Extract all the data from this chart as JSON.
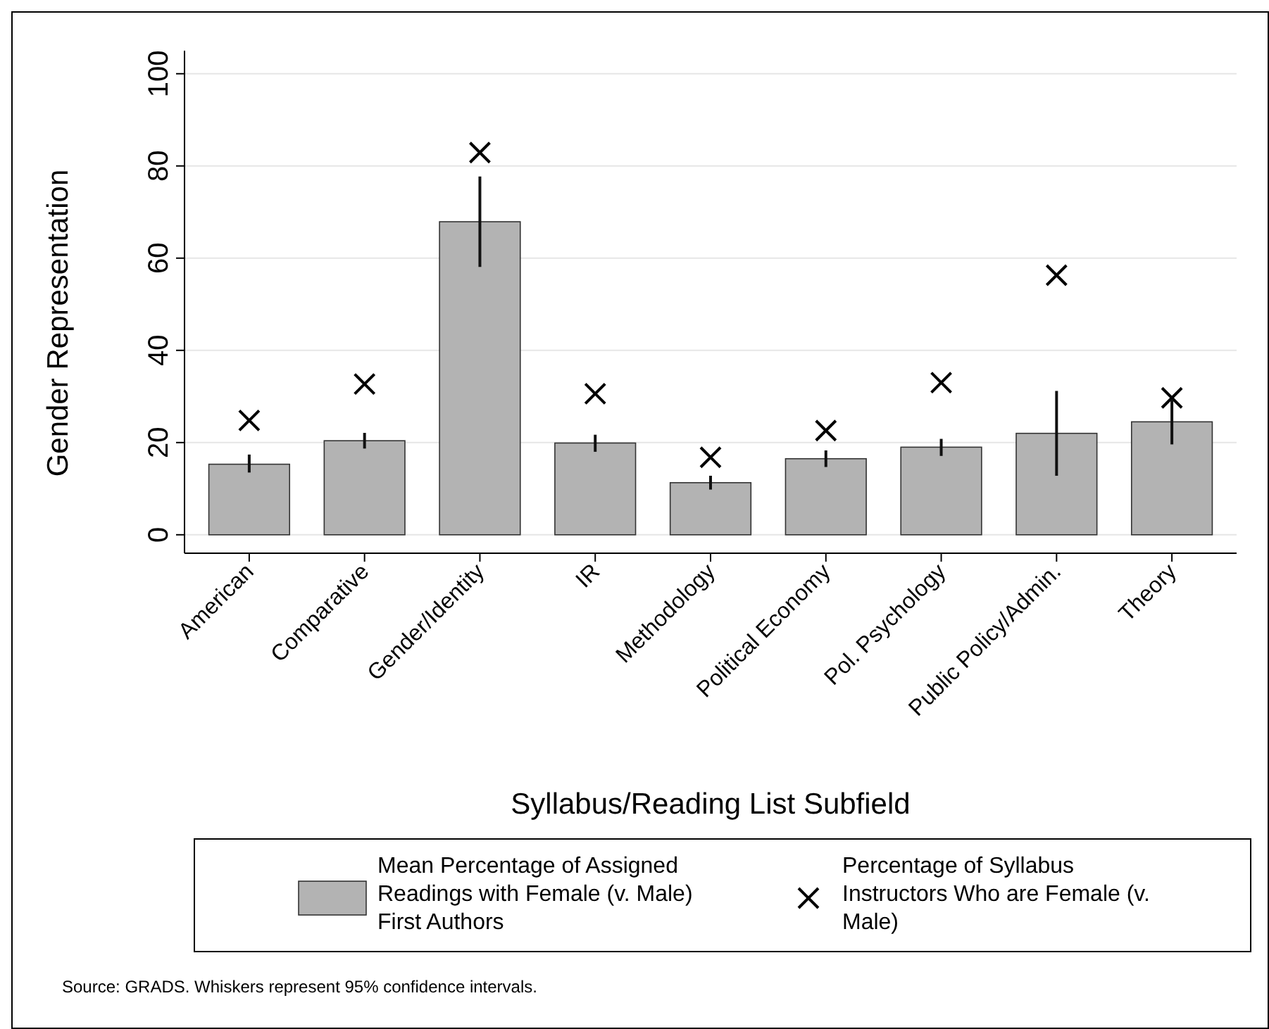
{
  "chart_data": {
    "type": "bar",
    "xlabel": "Syllabus/Reading List Subfield",
    "ylabel": "Gender Representation",
    "categories": [
      "American",
      "Comparative",
      "Gender/Identity",
      "IR",
      "Methodology",
      "Political Economy",
      "Pol. Psychology",
      "Public Policy/Admin.",
      "Theory"
    ],
    "series": [
      {
        "name": "Mean Percentage of Assigned Readings with Female (v. Male) First Authors",
        "color": "#b3b3b3",
        "values": [
          15.3,
          20.4,
          67.9,
          19.9,
          11.3,
          16.5,
          19,
          22,
          24.5
        ],
        "errors": [
          [
            13.5,
            17.4
          ],
          [
            18.7,
            22.1
          ],
          [
            58.1,
            77.7
          ],
          [
            18,
            21.7
          ],
          [
            9.8,
            12.8
          ],
          [
            14.7,
            18.3
          ],
          [
            17.1,
            20.8
          ],
          [
            12.8,
            31.2
          ],
          [
            19.6,
            29.4
          ]
        ]
      },
      {
        "name": "Percentage of Syllabus Instructors Who are Female (v. Male)",
        "type": "scatter",
        "color": "#000000",
        "marker": "cross",
        "x": [
          "American",
          "Comparative",
          "Gender/Identity",
          "IR",
          "Methodology",
          "Political Economy",
          "Pol. Psychology",
          "Public Policy/Admin.",
          "Theory"
        ],
        "values": [
          24.8,
          32.7,
          82.9,
          30.6,
          16.8,
          22.6,
          33,
          56.3,
          29.7
        ]
      }
    ],
    "ylim": [
      -4,
      105
    ],
    "yticks": [
      0,
      20,
      40,
      60,
      80,
      100
    ],
    "grid": "y",
    "legend": "bottom",
    "annotations": [
      "Source: GRADS. Whiskers represent 95% confidence intervals."
    ]
  }
}
